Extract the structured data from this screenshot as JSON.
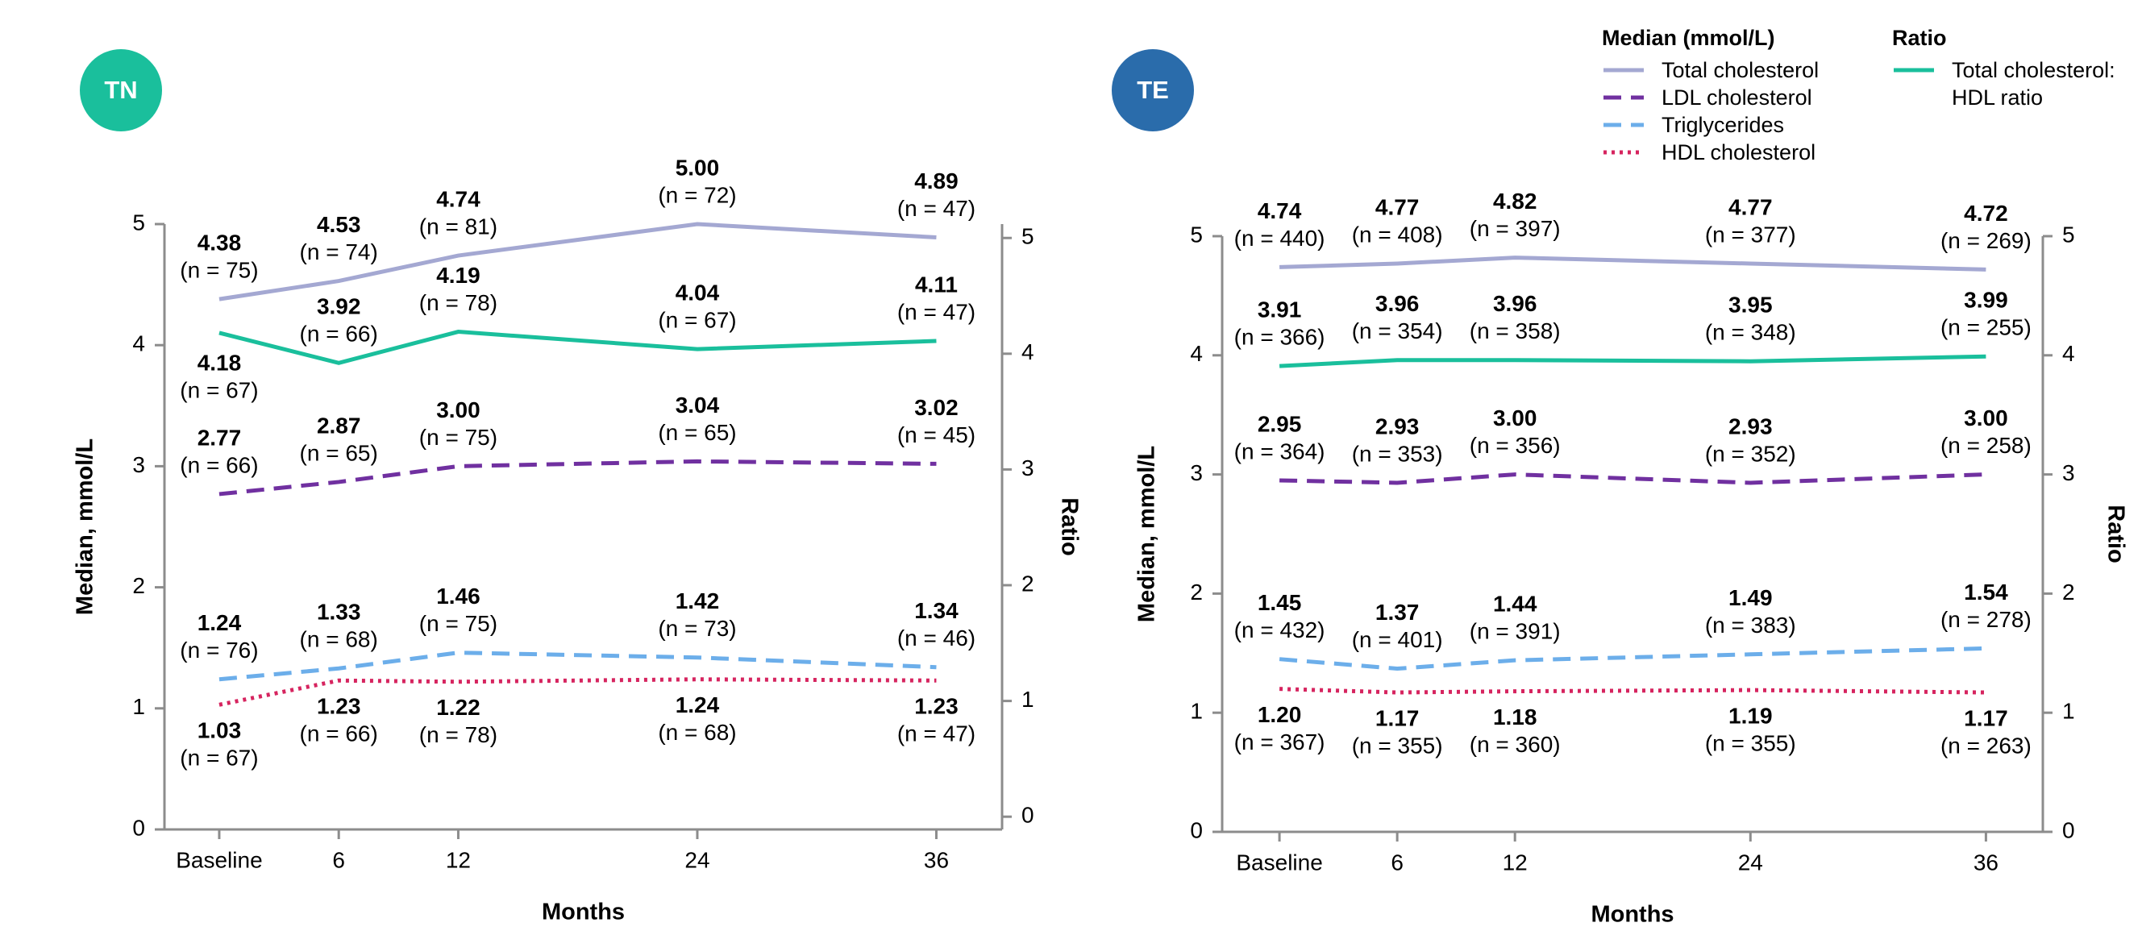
{
  "legend": {
    "groups": [
      {
        "title": "Median (mmol/L)",
        "entries": [
          {
            "name": "Total cholesterol",
            "color": "#a4a8d2",
            "dash": "solid"
          },
          {
            "name": "LDL cholesterol",
            "color": "#7030a0",
            "dash": "dashed"
          },
          {
            "name": "Triglycerides",
            "color": "#6caeea",
            "dash": "dashed"
          },
          {
            "name": "HDL cholesterol",
            "color": "#d6245f",
            "dash": "dotted"
          }
        ]
      },
      {
        "title": "Ratio",
        "entries": [
          {
            "name": "Total cholesterol: HDL ratio",
            "color": "#1abf9c",
            "dash": "solid"
          }
        ]
      }
    ]
  },
  "chart_data": [
    {
      "type": "line",
      "title": "TN",
      "badge_color": "#1abf9c",
      "x": [
        0,
        6,
        12,
        24,
        36
      ],
      "xlim": [
        -2.75,
        39.3
      ],
      "xticks": [
        {
          "value": 0,
          "label": "Baseline"
        },
        6,
        12,
        24,
        36
      ],
      "xlabel": "Months",
      "ylabel": "Median, mmol/L",
      "y2label": "Ratio",
      "ylim": [
        0,
        5
      ],
      "yticks": [
        0,
        1,
        2,
        3,
        4,
        5
      ],
      "y2lim": [
        -0.11,
        5.12
      ],
      "y2ticks": [
        0,
        1,
        2,
        3,
        4,
        5
      ],
      "series": [
        {
          "values": [
            4.38,
            4.53,
            4.74,
            5.0,
            4.89
          ],
          "value_labels": [
            "4.38",
            "4.53",
            "4.74",
            "5.00",
            "4.89"
          ],
          "n_labels": [
            "(n = 75)",
            "(n = 74)",
            "(n = 81)",
            "(n = 72)",
            "(n = 47)"
          ]
        },
        {
          "values": [
            2.77,
            2.87,
            3.0,
            3.04,
            3.02
          ],
          "value_labels": [
            "2.77",
            "2.87",
            "3.00",
            "3.04",
            "3.02"
          ],
          "n_labels": [
            "(n = 66)",
            "(n = 65)",
            "(n = 75)",
            "(n = 65)",
            "(n = 45)"
          ]
        },
        {
          "values": [
            1.24,
            1.33,
            1.46,
            1.42,
            1.34
          ],
          "value_labels": [
            "1.24",
            "1.33",
            "1.46",
            "1.42",
            "1.34"
          ],
          "n_labels": [
            "(n = 76)",
            "(n = 68)",
            "(n = 75)",
            "(n = 73)",
            "(n = 46)"
          ]
        },
        {
          "values": [
            1.03,
            1.23,
            1.22,
            1.24,
            1.23
          ],
          "value_labels": [
            "1.03",
            "1.23",
            "1.22",
            "1.24",
            "1.23"
          ],
          "n_labels": [
            "(n = 67)",
            "(n = 66)",
            "(n = 78)",
            "(n = 68)",
            "(n = 47)"
          ]
        },
        {
          "axis": "y2",
          "values": [
            4.18,
            3.92,
            4.19,
            4.04,
            4.11
          ],
          "value_labels": [
            "4.18",
            "3.92",
            "4.19",
            "4.04",
            "4.11"
          ],
          "n_labels": [
            "(n = 67)",
            "(n = 66)",
            "(n = 78)",
            "(n = 67)",
            "(n = 47)"
          ]
        }
      ]
    },
    {
      "type": "line",
      "title": "TE",
      "badge_color": "#2a6cab",
      "x": [
        0,
        6,
        12,
        24,
        36
      ],
      "xlim": [
        -2.92,
        38.9
      ],
      "xticks": [
        {
          "value": 0,
          "label": "Baseline"
        },
        6,
        12,
        24,
        36
      ],
      "xlabel": "Months",
      "ylabel": "Median, mmol/L",
      "y2label": "Ratio",
      "ylim": [
        0,
        5
      ],
      "yticks": [
        0,
        1,
        2,
        3,
        4,
        5
      ],
      "y2lim": [
        0,
        5
      ],
      "y2ticks": [
        0,
        1,
        2,
        3,
        4,
        5
      ],
      "series": [
        {
          "values": [
            4.74,
            4.77,
            4.82,
            4.77,
            4.72
          ],
          "value_labels": [
            "4.74",
            "4.77",
            "4.82",
            "4.77",
            "4.72"
          ],
          "n_labels": [
            "(n = 440)",
            "(n = 408)",
            "(n = 397)",
            "(n = 377)",
            "(n = 269)"
          ]
        },
        {
          "values": [
            2.95,
            2.93,
            3.0,
            2.93,
            3.0
          ],
          "value_labels": [
            "2.95",
            "2.93",
            "3.00",
            "2.93",
            "3.00"
          ],
          "n_labels": [
            "(n = 364)",
            "(n = 353)",
            "(n = 356)",
            "(n = 352)",
            "(n = 258)"
          ]
        },
        {
          "values": [
            1.45,
            1.37,
            1.44,
            1.49,
            1.54
          ],
          "value_labels": [
            "1.45",
            "1.37",
            "1.44",
            "1.49",
            "1.54"
          ],
          "n_labels": [
            "(n = 432)",
            "(n = 401)",
            "(n = 391)",
            "(n = 383)",
            "(n = 278)"
          ]
        },
        {
          "values": [
            1.2,
            1.17,
            1.18,
            1.19,
            1.17
          ],
          "value_labels": [
            "1.20",
            "1.17",
            "1.18",
            "1.19",
            "1.17"
          ],
          "n_labels": [
            "(n = 367)",
            "(n = 355)",
            "(n = 360)",
            "(n = 355)",
            "(n = 263)"
          ]
        },
        {
          "axis": "y2",
          "values": [
            3.91,
            3.96,
            3.96,
            3.95,
            3.99
          ],
          "value_labels": [
            "3.91",
            "3.96",
            "3.96",
            "3.95",
            "3.99"
          ],
          "n_labels": [
            "(n = 366)",
            "(n = 354)",
            "(n = 358)",
            "(n = 348)",
            "(n = 255)"
          ]
        }
      ]
    }
  ]
}
